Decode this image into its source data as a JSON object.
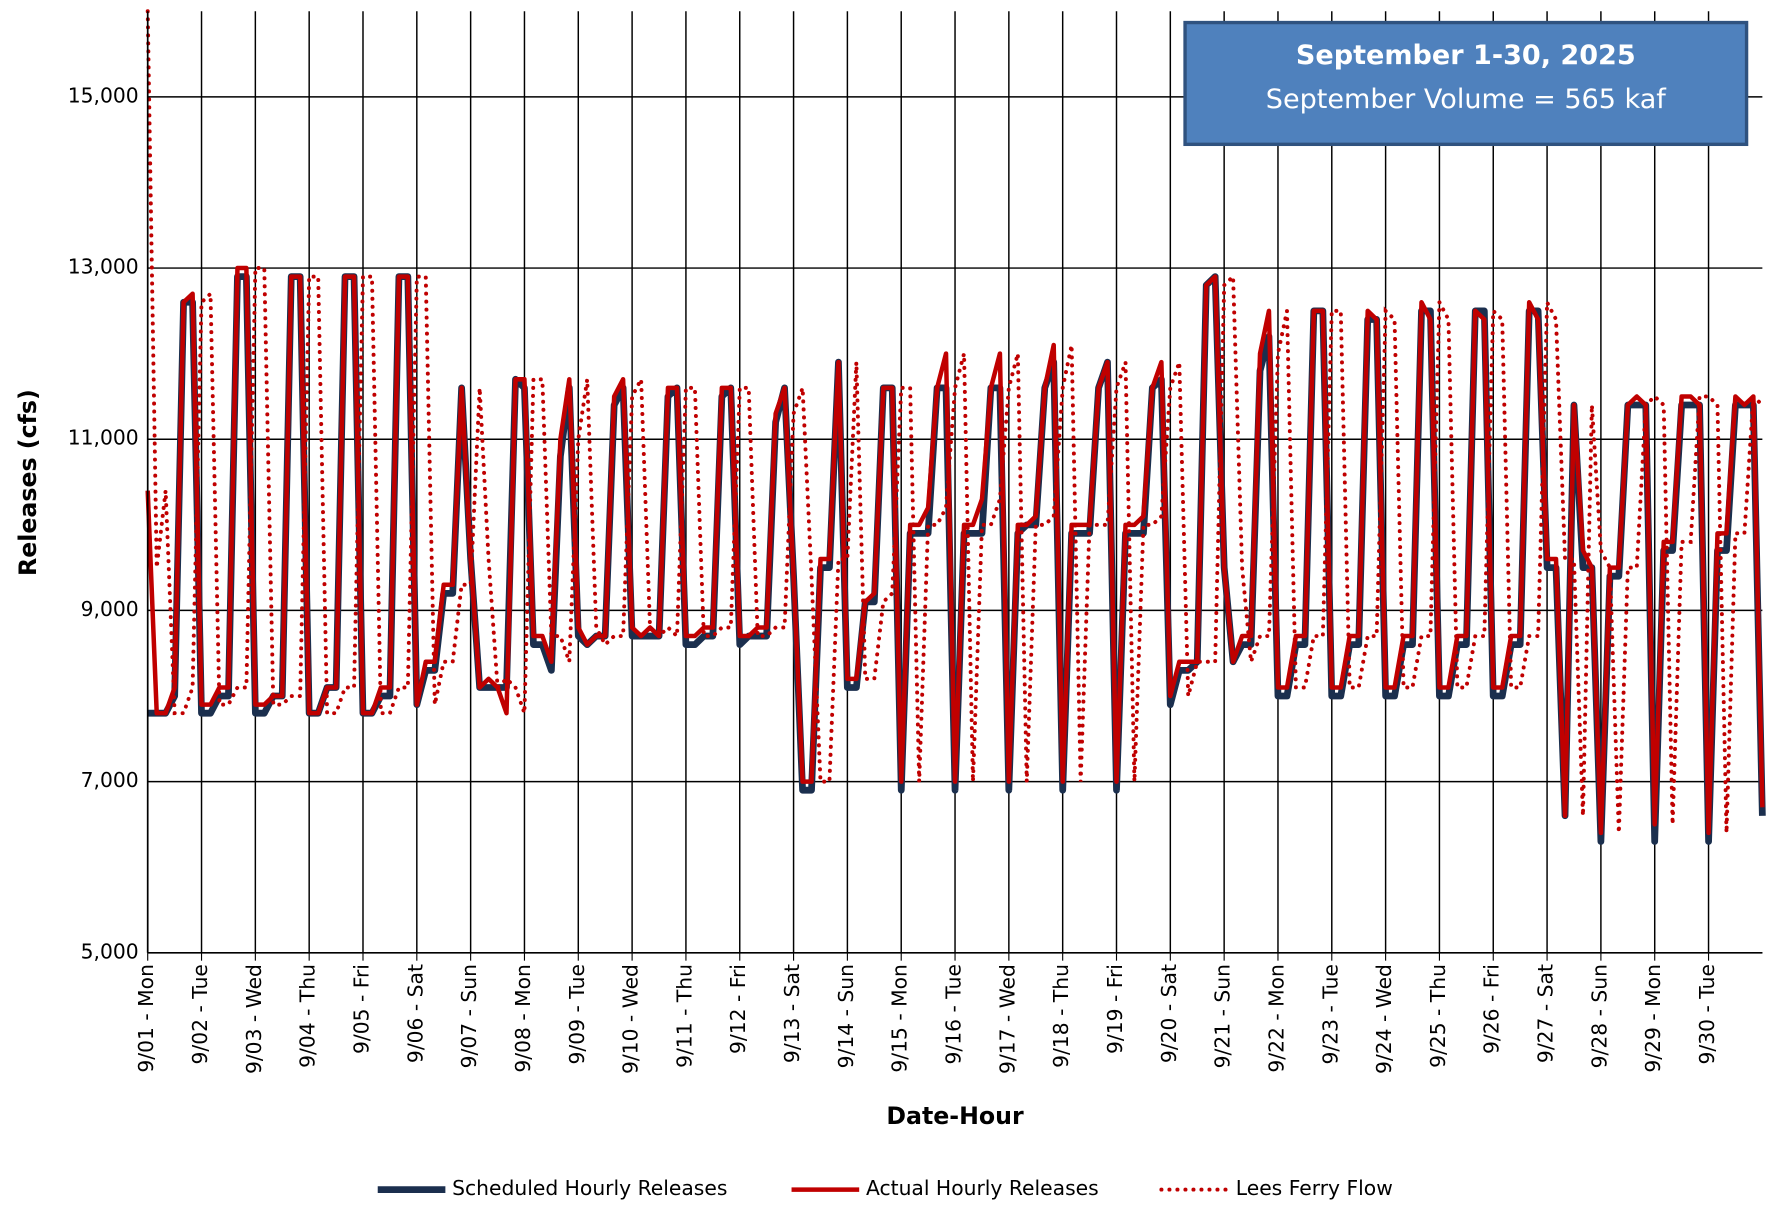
{
  "chart_data": {
    "type": "line",
    "title": "September 1-30, 2025",
    "subtitle": "September Volume = 565 kaf",
    "x_label": "Date-Hour",
    "y_label": "Releases (cfs)",
    "xlim": [
      0,
      720
    ],
    "ylim": [
      5000,
      16000
    ],
    "grid": true,
    "xticks": [
      {
        "value": 0,
        "label": "9/01 - Mon"
      },
      {
        "value": 24,
        "label": "9/02 - Tue"
      },
      {
        "value": 48,
        "label": "9/03 - Wed"
      },
      {
        "value": 72,
        "label": "9/04 - Thu"
      },
      {
        "value": 96,
        "label": "9/05 - Fri"
      },
      {
        "value": 120,
        "label": "9/06 - Sat"
      },
      {
        "value": 144,
        "label": "9/07 - Sun"
      },
      {
        "value": 168,
        "label": "9/08 - Mon"
      },
      {
        "value": 192,
        "label": "9/09 - Tue"
      },
      {
        "value": 216,
        "label": "9/10 - Wed"
      },
      {
        "value": 240,
        "label": "9/11 - Thu"
      },
      {
        "value": 264,
        "label": "9/12 - Fri"
      },
      {
        "value": 288,
        "label": "9/13 - Sat"
      },
      {
        "value": 312,
        "label": "9/14 - Sun"
      },
      {
        "value": 336,
        "label": "9/15 - Mon"
      },
      {
        "value": 360,
        "label": "9/16 - Tue"
      },
      {
        "value": 384,
        "label": "9/17 - Wed"
      },
      {
        "value": 408,
        "label": "9/18 - Thu"
      },
      {
        "value": 432,
        "label": "9/19 - Fri"
      },
      {
        "value": 456,
        "label": "9/20 - Sat"
      },
      {
        "value": 480,
        "label": "9/21 - Sun"
      },
      {
        "value": 504,
        "label": "9/22 - Mon"
      },
      {
        "value": 528,
        "label": "9/23 - Tue"
      },
      {
        "value": 552,
        "label": "9/24 - Wed"
      },
      {
        "value": 576,
        "label": "9/25 - Thu"
      },
      {
        "value": 600,
        "label": "9/26 - Fri"
      },
      {
        "value": 624,
        "label": "9/27 - Sat"
      },
      {
        "value": 648,
        "label": "9/28 - Sun"
      },
      {
        "value": 672,
        "label": "9/29 - Mon"
      },
      {
        "value": 696,
        "label": "9/30 - Tue"
      }
    ],
    "yticks": [
      {
        "value": 5000,
        "label": "5,000"
      },
      {
        "value": 7000,
        "label": "7,000"
      },
      {
        "value": 9000,
        "label": "9,000"
      },
      {
        "value": 11000,
        "label": "11,000"
      },
      {
        "value": 13000,
        "label": "13,000"
      },
      {
        "value": 15000,
        "label": "15,000"
      }
    ],
    "x": [
      0,
      4,
      8,
      12,
      16,
      20,
      24,
      28,
      32,
      36,
      40,
      44,
      48,
      52,
      56,
      60,
      64,
      68,
      72,
      76,
      80,
      84,
      88,
      92,
      96,
      100,
      104,
      108,
      112,
      116,
      120,
      124,
      128,
      132,
      136,
      140,
      144,
      148,
      152,
      156,
      160,
      164,
      168,
      172,
      176,
      180,
      184,
      188,
      192,
      196,
      200,
      204,
      208,
      212,
      216,
      220,
      224,
      228,
      232,
      236,
      240,
      244,
      248,
      252,
      256,
      260,
      264,
      268,
      272,
      276,
      280,
      284,
      288,
      292,
      296,
      300,
      304,
      308,
      312,
      316,
      320,
      324,
      328,
      332,
      336,
      340,
      344,
      348,
      352,
      356,
      360,
      364,
      368,
      372,
      376,
      380,
      384,
      388,
      392,
      396,
      400,
      404,
      408,
      412,
      416,
      420,
      424,
      428,
      432,
      436,
      440,
      444,
      448,
      452,
      456,
      460,
      464,
      468,
      472,
      476,
      480,
      484,
      488,
      492,
      496,
      500,
      504,
      508,
      512,
      516,
      520,
      524,
      528,
      532,
      536,
      540,
      544,
      548,
      552,
      556,
      560,
      564,
      568,
      572,
      576,
      580,
      584,
      588,
      592,
      596,
      600,
      604,
      608,
      612,
      616,
      620,
      624,
      628,
      632,
      636,
      640,
      644,
      648,
      652,
      656,
      660,
      664,
      668,
      672,
      676,
      680,
      684,
      688,
      692,
      696,
      700,
      704,
      708,
      712,
      716,
      720
    ],
    "series": [
      {
        "name": "Scheduled Hourly Releases",
        "color": "#1b2f4e",
        "style": "solid",
        "values": [
          7800,
          7800,
          7800,
          8000,
          12600,
          12600,
          7800,
          7800,
          8000,
          8000,
          12900,
          12900,
          7800,
          7800,
          8000,
          8000,
          12900,
          12900,
          7800,
          7800,
          8100,
          8100,
          12900,
          12900,
          7800,
          7800,
          8000,
          8000,
          12900,
          12900,
          7900,
          8300,
          8300,
          9200,
          9200,
          11600,
          9600,
          8100,
          8100,
          8100,
          8100,
          11700,
          11600,
          8600,
          8600,
          8300,
          10800,
          11600,
          8700,
          8600,
          8700,
          8700,
          11400,
          11600,
          8700,
          8700,
          8700,
          8700,
          11500,
          11600,
          8600,
          8600,
          8700,
          8700,
          11500,
          11600,
          8600,
          8700,
          8700,
          8700,
          11200,
          11600,
          9400,
          6900,
          6900,
          9500,
          9500,
          11900,
          8100,
          8100,
          9100,
          9100,
          11600,
          11600,
          6900,
          9900,
          9900,
          9900,
          11600,
          11600,
          6900,
          9900,
          9900,
          9900,
          11600,
          11600,
          6900,
          9900,
          10000,
          10000,
          11600,
          11900,
          6900,
          9900,
          9900,
          9900,
          11600,
          11900,
          6900,
          9900,
          9900,
          9900,
          11600,
          11700,
          7900,
          8300,
          8300,
          8400,
          12800,
          12900,
          9500,
          8400,
          8600,
          8600,
          11800,
          12200,
          8000,
          8000,
          8600,
          8600,
          12500,
          12500,
          8000,
          8000,
          8600,
          8600,
          12400,
          12400,
          8000,
          8000,
          8600,
          8600,
          12500,
          12500,
          8000,
          8000,
          8600,
          8600,
          12500,
          12500,
          8000,
          8000,
          8600,
          8600,
          12500,
          12500,
          9500,
          9500,
          6600,
          11400,
          9500,
          9500,
          6300,
          9400,
          9400,
          11400,
          11400,
          11400,
          6300,
          9700,
          9700,
          11400,
          11400,
          11400,
          6300,
          9700,
          9700,
          11400,
          11400,
          11400,
          6600
        ]
      },
      {
        "name": "Actual Hourly Releases",
        "color": "#c00000",
        "style": "solid",
        "values": [
          10400,
          7800,
          7800,
          8100,
          12600,
          12700,
          7900,
          7900,
          8100,
          8100,
          13000,
          13000,
          7900,
          7900,
          8000,
          8000,
          12900,
          12900,
          7800,
          7800,
          8100,
          8100,
          12900,
          12900,
          7800,
          7800,
          8100,
          8100,
          12900,
          12900,
          7900,
          8400,
          8400,
          9300,
          9300,
          11600,
          9600,
          8100,
          8200,
          8100,
          7800,
          11700,
          11700,
          8700,
          8700,
          8400,
          11000,
          11700,
          8800,
          8600,
          8700,
          8700,
          11500,
          11700,
          8800,
          8700,
          8800,
          8700,
          11600,
          11600,
          8700,
          8700,
          8800,
          8800,
          11600,
          11600,
          8700,
          8700,
          8800,
          8800,
          11300,
          11600,
          9400,
          7000,
          7000,
          9600,
          9600,
          11900,
          8200,
          8200,
          9100,
          9200,
          11600,
          11600,
          7000,
          10000,
          10000,
          10200,
          11600,
          12000,
          7000,
          10000,
          10000,
          10300,
          11600,
          12000,
          7000,
          10000,
          10000,
          10100,
          11600,
          12100,
          7000,
          10000,
          10000,
          10000,
          11600,
          11900,
          7000,
          10000,
          10000,
          10100,
          11600,
          11900,
          8000,
          8400,
          8400,
          8400,
          12800,
          12900,
          9500,
          8400,
          8700,
          8700,
          12000,
          12500,
          8100,
          8100,
          8700,
          8700,
          12500,
          12500,
          8100,
          8100,
          8700,
          8700,
          12500,
          12400,
          8100,
          8100,
          8700,
          8700,
          12600,
          12400,
          8100,
          8100,
          8700,
          8700,
          12500,
          12400,
          8100,
          8100,
          8700,
          8700,
          12600,
          12400,
          9600,
          9600,
          6600,
          11400,
          9700,
          9500,
          6400,
          9500,
          9500,
          11400,
          11500,
          11400,
          6500,
          9800,
          9800,
          11500,
          11500,
          11400,
          6400,
          9900,
          9900,
          11500,
          11400,
          11500,
          6700
        ]
      },
      {
        "name": "Lees Ferry Flow",
        "color": "#c00000",
        "style": "dotted",
        "values": [
          16000,
          9500,
          10400,
          7800,
          7800,
          8100,
          12600,
          12700,
          7900,
          7900,
          8100,
          8100,
          13000,
          13000,
          7900,
          7900,
          8000,
          8000,
          12900,
          12900,
          7800,
          7800,
          8100,
          8100,
          12900,
          12900,
          7800,
          7800,
          8100,
          8100,
          12900,
          12900,
          7900,
          8400,
          8400,
          9300,
          9300,
          11600,
          9600,
          8100,
          8200,
          8100,
          7800,
          11700,
          11700,
          8700,
          8700,
          8400,
          11000,
          11700,
          8800,
          8600,
          8700,
          8700,
          11500,
          11700,
          8800,
          8700,
          8800,
          8700,
          11600,
          11600,
          8700,
          8700,
          8800,
          8800,
          11600,
          11600,
          8700,
          8700,
          8800,
          8800,
          11300,
          11600,
          9400,
          7000,
          7000,
          9600,
          9600,
          11900,
          8200,
          8200,
          9100,
          9200,
          11600,
          11600,
          7000,
          10000,
          10000,
          10200,
          11600,
          12000,
          7000,
          10000,
          10000,
          10300,
          11600,
          12000,
          7000,
          10000,
          10000,
          10100,
          11600,
          12100,
          7000,
          10000,
          10000,
          10000,
          11600,
          11900,
          7000,
          10000,
          10000,
          10100,
          11600,
          11900,
          8000,
          8400,
          8400,
          8400,
          12800,
          12900,
          9500,
          8400,
          8700,
          8700,
          12000,
          12500,
          8100,
          8100,
          8700,
          8700,
          12500,
          12500,
          8100,
          8100,
          8700,
          8700,
          12500,
          12400,
          8100,
          8100,
          8700,
          8700,
          12600,
          12400,
          8100,
          8100,
          8700,
          8700,
          12500,
          12400,
          8100,
          8100,
          8700,
          8700,
          12600,
          12400,
          9600,
          9600,
          6600,
          11400,
          9700,
          9500,
          6400,
          9500,
          9500,
          11400,
          11500,
          11400,
          6500,
          9800,
          9800,
          11500,
          11500,
          11400,
          6400,
          9900,
          9900,
          11500,
          11400
        ]
      }
    ]
  }
}
